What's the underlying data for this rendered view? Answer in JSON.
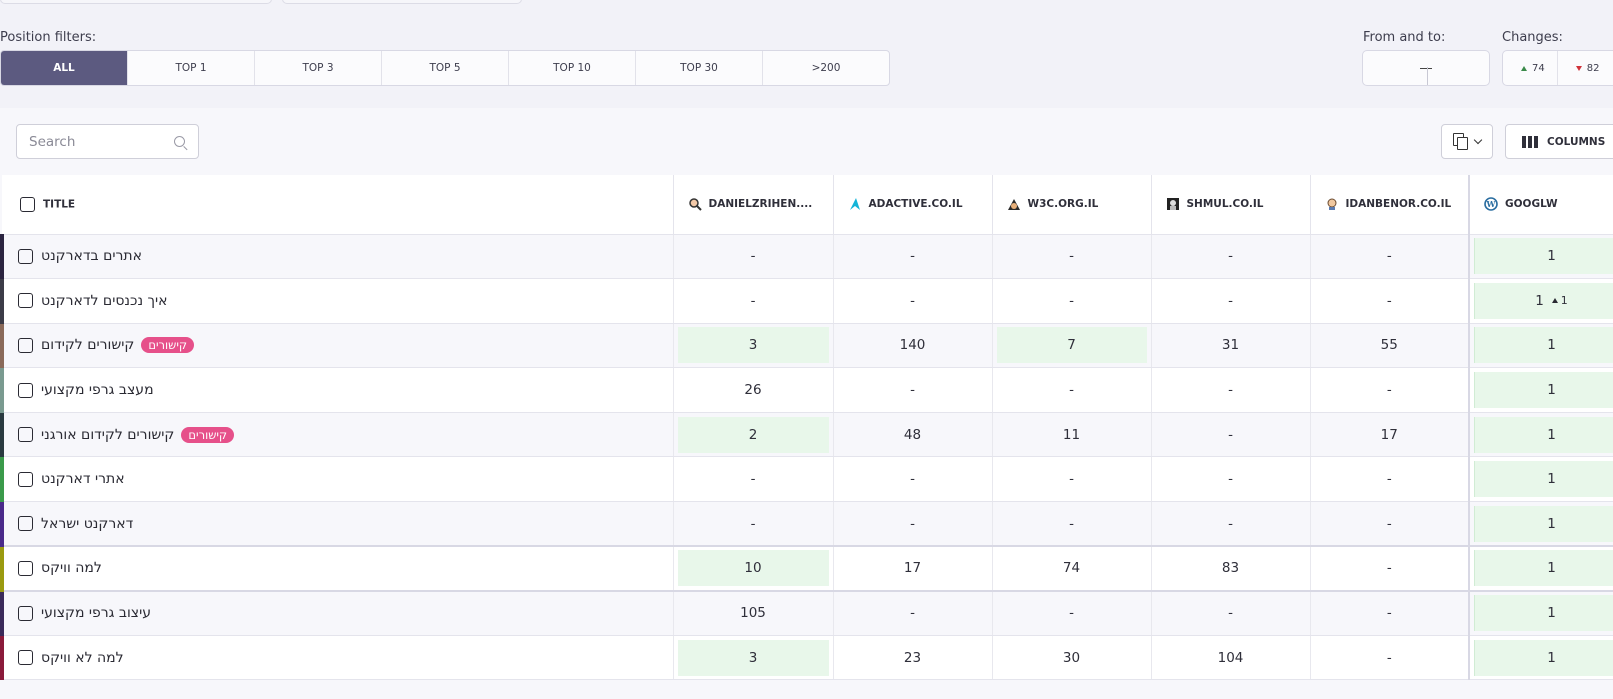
{
  "filters": {
    "position_label": "Position filters:",
    "segments": [
      "ALL",
      "TOP 1",
      "TOP 3",
      "TOP 5",
      "TOP 10",
      "TOP 30",
      ">200"
    ],
    "active": "ALL",
    "from_to_label": "From and to:",
    "changes_label": "Changes:",
    "changes": {
      "up": "74",
      "down": "82"
    }
  },
  "toolbar": {
    "search_placeholder": "Search",
    "columns_label": "COLUMNS"
  },
  "table": {
    "columns": [
      {
        "label": "TITLE"
      },
      {
        "label": "DANIELZRIHEN....",
        "icon": "magnifier-avatar-icon"
      },
      {
        "label": "ADACTIVE.CO.IL",
        "icon": "adactive-logo-icon"
      },
      {
        "label": "W3C.ORG.IL",
        "icon": "w3c-avatar-icon"
      },
      {
        "label": "SHMUL.CO.IL",
        "icon": "shmul-avatar-icon"
      },
      {
        "label": "IDANBENOR.CO.IL",
        "icon": "person-avatar-icon"
      },
      {
        "label": "GOOGLW",
        "icon": "wordpress-icon"
      }
    ],
    "rows": [
      {
        "keyword": "אתרים בדארקנט",
        "tag": "",
        "color": "#2b2440",
        "values": [
          "-",
          "-",
          "-",
          "-",
          "-",
          "1"
        ],
        "highlight": [],
        "change": ""
      },
      {
        "keyword": "איך נכנסים לדארקנט",
        "tag": "",
        "color": "#3c3c48",
        "values": [
          "-",
          "-",
          "-",
          "-",
          "-",
          "1"
        ],
        "highlight": [],
        "change": "1"
      },
      {
        "keyword": "קישורים לקידום",
        "tag": "קישורים",
        "color": "#8a6a5a",
        "values": [
          "3",
          "140",
          "7",
          "31",
          "55",
          "1"
        ],
        "highlight": [
          0,
          2
        ],
        "change": ""
      },
      {
        "keyword": "מעצב גרפי מקצועי",
        "tag": "",
        "color": "#7a9a90",
        "values": [
          "26",
          "-",
          "-",
          "-",
          "-",
          "1"
        ],
        "highlight": [],
        "change": ""
      },
      {
        "keyword": "קישורים לקידום אורגני",
        "tag": "קישורים",
        "color": "#2a3a40",
        "values": [
          "2",
          "48",
          "11",
          "-",
          "17",
          "1"
        ],
        "highlight": [
          0
        ],
        "change": ""
      },
      {
        "keyword": "אתרי דארקנט",
        "tag": "",
        "color": "#3a9a4a",
        "values": [
          "-",
          "-",
          "-",
          "-",
          "-",
          "1"
        ],
        "highlight": [],
        "change": ""
      },
      {
        "keyword": "דארקנט ישראל",
        "tag": "",
        "color": "#4a2a8a",
        "values": [
          "-",
          "-",
          "-",
          "-",
          "-",
          "1"
        ],
        "highlight": [],
        "change": ""
      },
      {
        "keyword": "למה וויקס",
        "tag": "",
        "color": "#9a9a10",
        "values": [
          "10",
          "17",
          "74",
          "83",
          "-",
          "1"
        ],
        "highlight": [
          0
        ],
        "change": ""
      },
      {
        "keyword": "עיצוב גרפי מקצועי",
        "tag": "",
        "color": "#3a2a5a",
        "values": [
          "105",
          "-",
          "-",
          "-",
          "-",
          "1"
        ],
        "highlight": [],
        "change": ""
      },
      {
        "keyword": "למה לא וויקס",
        "tag": "",
        "color": "#8a1a3a",
        "values": [
          "3",
          "23",
          "30",
          "104",
          "-",
          "1"
        ],
        "highlight": [
          0
        ],
        "change": ""
      }
    ]
  }
}
